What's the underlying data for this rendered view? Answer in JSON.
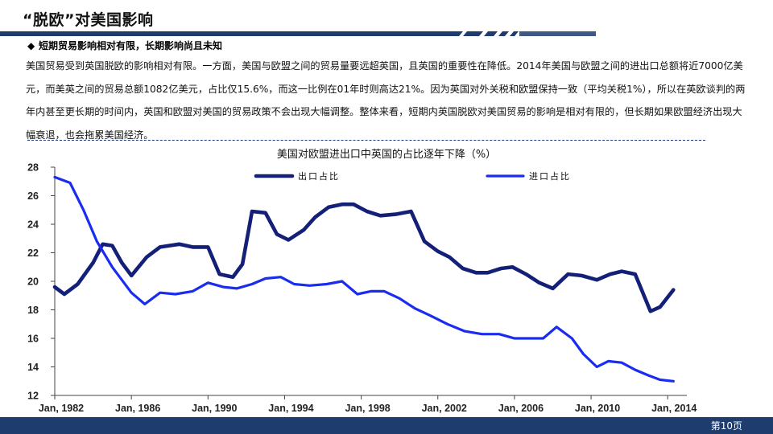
{
  "page": {
    "title": "“脱欧”对美国影响",
    "bullet_symbol": "◆",
    "bullet_heading": "短期贸易影响相对有限，长期影响尚且未知",
    "paragraph": "美国贸易受到英国脱欧的影响相对有限。一方面，美国与欧盟之间的贸易量要远超英国，且英国的重要性在降低。2014年美国与欧盟之间的进出口总额将近7000亿美元，而美英之间的贸易总额1082亿美元，占比仅15.6%，而这一比例在01年时则高达21%。因为英国对外关税和欧盟保持一致（平均关税1%），所以在英欧谈判的两年内甚至更长期的时间内，英国和欧盟对美国的贸易政策不会出现大幅调整。整体来看，短期内英国脱欧对美国贸易的影响是相对有限的，但长期如果欧盟经济出现大幅衰退，也会拖累美国经济。",
    "page_number": "第10页"
  },
  "colors": {
    "brand": "#1e3c6e",
    "export_series": "#141f78",
    "import_series": "#1a2cf0"
  },
  "chart_data": {
    "type": "line",
    "title": "美国对欧盟进出口中英国的占比逐年下降（%）",
    "xlabel": "",
    "ylabel": "",
    "x_ticks": [
      "Jan, 1982",
      "Jan, 1986",
      "Jan, 1990",
      "Jan, 1994",
      "Jan, 1998",
      "Jan, 2002",
      "Jan, 2006",
      "Jan, 2010",
      "Jan, 2014"
    ],
    "xlim": [
      1982.0,
      2015.0
    ],
    "ylim": [
      12,
      28
    ],
    "y_ticks": [
      12,
      14,
      16,
      18,
      20,
      22,
      24,
      26,
      28
    ],
    "legend_position": "top",
    "series": [
      {
        "name": "出口占比",
        "x": [
          1982.0,
          1982.5,
          1983.2,
          1984.0,
          1984.5,
          1985.0,
          1985.5,
          1986.0,
          1986.8,
          1987.5,
          1988.5,
          1989.2,
          1990.0,
          1990.6,
          1991.3,
          1991.8,
          1992.3,
          1993.0,
          1993.6,
          1994.2,
          1995.0,
          1995.6,
          1996.3,
          1997.0,
          1997.6,
          1998.3,
          1999.0,
          1999.8,
          2000.6,
          2001.3,
          2002.0,
          2002.6,
          2003.3,
          2004.0,
          2004.6,
          2005.3,
          2005.9,
          2006.6,
          2007.3,
          2008.0,
          2008.8,
          2009.5,
          2010.3,
          2011.0,
          2011.6,
          2012.3,
          2013.1,
          2013.6,
          2014.3
        ],
        "values": [
          19.6,
          19.1,
          19.8,
          21.3,
          22.6,
          22.5,
          21.3,
          20.4,
          21.7,
          22.4,
          22.6,
          22.4,
          22.4,
          20.5,
          20.3,
          21.2,
          24.9,
          24.8,
          23.3,
          22.9,
          23.6,
          24.5,
          25.2,
          25.4,
          25.4,
          24.9,
          24.6,
          24.7,
          24.9,
          22.8,
          22.1,
          21.7,
          20.9,
          20.6,
          20.6,
          20.9,
          21.0,
          20.5,
          19.9,
          19.5,
          20.5,
          20.4,
          20.1,
          20.5,
          20.7,
          20.5,
          17.9,
          18.2,
          19.4
        ]
      },
      {
        "name": "进口占比",
        "x": [
          1982.0,
          1982.8,
          1983.5,
          1984.2,
          1985.0,
          1986.0,
          1986.7,
          1987.5,
          1988.3,
          1989.2,
          1990.0,
          1990.8,
          1991.5,
          1992.3,
          1993.0,
          1993.8,
          1994.5,
          1995.3,
          1996.2,
          1997.0,
          1997.8,
          1998.5,
          1999.2,
          2000.0,
          2000.8,
          2001.6,
          2002.5,
          2003.4,
          2004.3,
          2005.2,
          2006.0,
          2006.8,
          2007.5,
          2008.2,
          2009.0,
          2009.6,
          2010.3,
          2010.9,
          2011.6,
          2012.3,
          2013.0,
          2013.6,
          2014.3
        ],
        "values": [
          27.3,
          26.9,
          25.0,
          22.8,
          21.0,
          19.2,
          18.4,
          19.2,
          19.1,
          19.3,
          19.9,
          19.6,
          19.5,
          19.8,
          20.2,
          20.3,
          19.8,
          19.7,
          19.8,
          20.0,
          19.1,
          19.3,
          19.3,
          18.8,
          18.1,
          17.6,
          17.0,
          16.5,
          16.3,
          16.3,
          16.0,
          16.0,
          16.0,
          16.8,
          16.0,
          14.9,
          14.0,
          14.4,
          14.3,
          13.8,
          13.4,
          13.1,
          13.0
        ]
      }
    ]
  }
}
